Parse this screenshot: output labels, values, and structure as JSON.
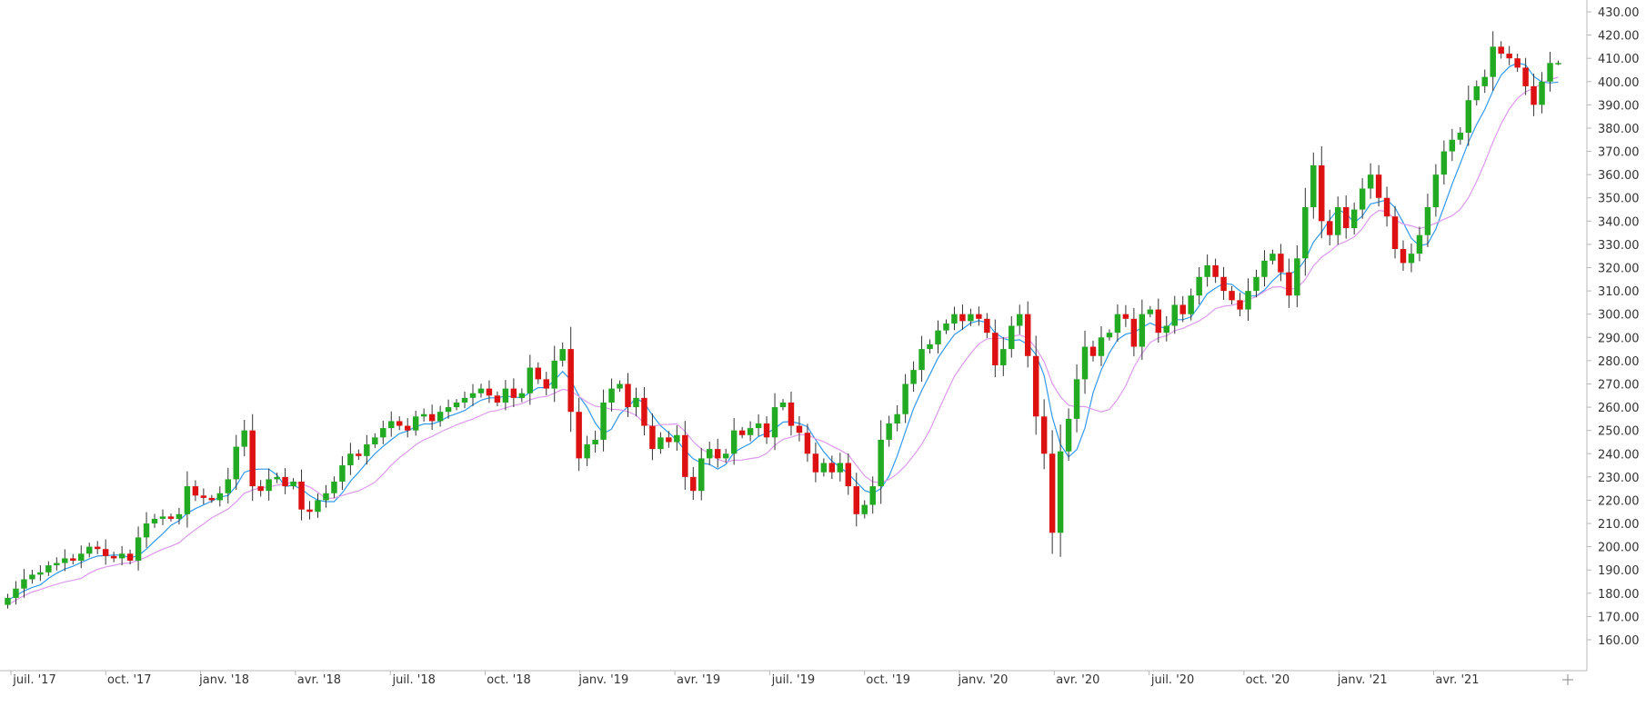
{
  "chart_data": {
    "type": "candlestick",
    "y_axis": {
      "position": "right",
      "range": [
        150,
        430
      ],
      "ticks": [
        "160.00",
        "170.00",
        "180.00",
        "190.00",
        "200.00",
        "210.00",
        "220.00",
        "230.00",
        "240.00",
        "250.00",
        "260.00",
        "270.00",
        "280.00",
        "290.00",
        "300.00",
        "310.00",
        "320.00",
        "330.00",
        "340.00",
        "350.00",
        "360.00",
        "370.00",
        "380.00",
        "390.00",
        "400.00",
        "410.00",
        "420.00",
        "430.00"
      ]
    },
    "x_axis": {
      "ticks": [
        "juil. '17",
        "oct. '17",
        "janv. '18",
        "avr. '18",
        "juil. '18",
        "oct. '18",
        "janv. '19",
        "avr. '19",
        "juil. '19",
        "oct. '19",
        "janv. '20",
        "avr. '20",
        "juil. '20",
        "oct. '20",
        "janv. '21",
        "avr. '21"
      ]
    },
    "grid": false,
    "colors": {
      "up": "#22aa22",
      "down": "#dd1111",
      "wick": "#333333",
      "ma_fast": "#3399ee",
      "ma_slow": "#dd99ee"
    },
    "moving_averages": [
      {
        "period": 5
      },
      {
        "period": 10
      }
    ],
    "closes": [
      178,
      182,
      186,
      188,
      189,
      192,
      193,
      195,
      194,
      197,
      200,
      199,
      196,
      195,
      197,
      194,
      204,
      210,
      212,
      213,
      212,
      214,
      226,
      222,
      221,
      220,
      223,
      229,
      243,
      250,
      226,
      224,
      229,
      230,
      226,
      228,
      216,
      215,
      220,
      223,
      228,
      235,
      240,
      239,
      244,
      247,
      251,
      254,
      252,
      250,
      256,
      257,
      254,
      258,
      260,
      262,
      264,
      266,
      268,
      265,
      262,
      268,
      264,
      266,
      277,
      272,
      268,
      280,
      285,
      258,
      238,
      244,
      246,
      262,
      268,
      270,
      260,
      264,
      252,
      242,
      247,
      245,
      248,
      230,
      224,
      238,
      242,
      238,
      240,
      250,
      248,
      251,
      253,
      247,
      260,
      262,
      252,
      249,
      240,
      232,
      236,
      232,
      236,
      226,
      214,
      218,
      226,
      246,
      253,
      257,
      270,
      276,
      285,
      287,
      293,
      296,
      300,
      297,
      300,
      298,
      292,
      278,
      285,
      295,
      300,
      282,
      256,
      240,
      206,
      241,
      255,
      272,
      286,
      282,
      290,
      292,
      300,
      298,
      286,
      300,
      302,
      292,
      295,
      304,
      300,
      308,
      316,
      321,
      316,
      310,
      306,
      302,
      310,
      316,
      323,
      326,
      318,
      308,
      324,
      346,
      364,
      340,
      334,
      346,
      337,
      345,
      354,
      360,
      350,
      342,
      328,
      322,
      326,
      334,
      346,
      360,
      370,
      375,
      378,
      392,
      398,
      402,
      415,
      412,
      410,
      406,
      398,
      390,
      400,
      408,
      408
    ]
  }
}
